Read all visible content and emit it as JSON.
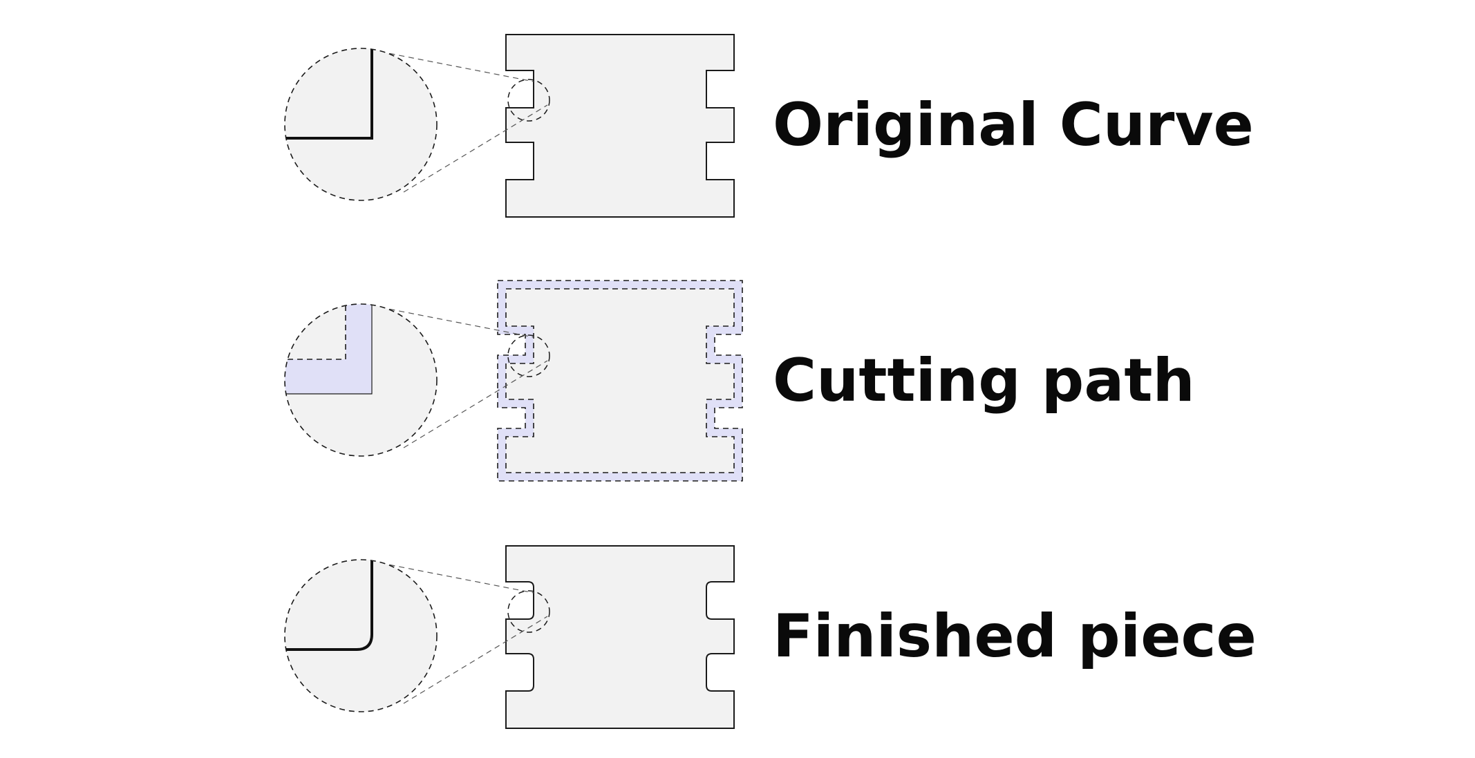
{
  "colors": {
    "background": "#ffffff",
    "piece_fill": "#f2f2f2",
    "outline": "#1a1a1a",
    "cut_fill": "#e0e0f7",
    "cut_fill_edge": "#b8b8e8",
    "dashed": "#333333"
  },
  "rows": [
    {
      "id": "original",
      "label": "Original Curve",
      "variant": "sharp"
    },
    {
      "id": "cutting",
      "label": "Cutting path",
      "variant": "path"
    },
    {
      "id": "finished",
      "label": "Finished piece",
      "variant": "rounded"
    }
  ]
}
